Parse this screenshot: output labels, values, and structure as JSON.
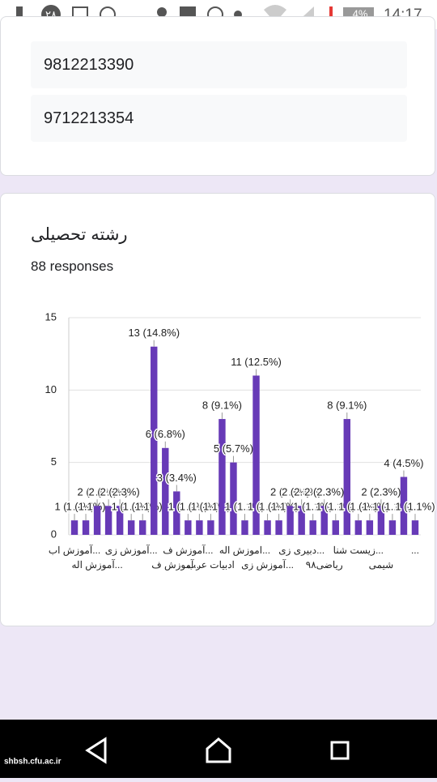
{
  "status_bar": {
    "time": "14:17",
    "battery": "4%",
    "badge": "۲۸"
  },
  "answers": [
    "9812213390",
    "9712213354"
  ],
  "question": {
    "title": "رشته تحصیلی",
    "responses": "88 responses"
  },
  "chart_data": {
    "type": "bar",
    "color": "#673ab7",
    "grid": true,
    "ylim": [
      0,
      15
    ],
    "yticks": [
      0,
      5,
      10,
      15
    ],
    "categories": [
      "آموزش اب...",
      null,
      "آموزش اله...",
      null,
      null,
      "آموزش زی...",
      null,
      null,
      null,
      "آموزش ف...",
      "آموزش ف...",
      null,
      "ادبیات عرب",
      null,
      null,
      "اموزش اله...",
      null,
      "آموزش زی...",
      null,
      null,
      "دبیری زی...",
      null,
      "ریاضی۹۸",
      null,
      null,
      "زیست شنا...",
      null,
      "شیمی",
      null,
      null,
      "..."
    ],
    "values": [
      1,
      1,
      2,
      2,
      2,
      1,
      1,
      13,
      6,
      3,
      1,
      1,
      1,
      8,
      5,
      1,
      11,
      1,
      1,
      2,
      2,
      1,
      2,
      1,
      8,
      1,
      1,
      2,
      1,
      4,
      1
    ],
    "value_labels": [
      "1 (1.1%)",
      "1 (1.1%)",
      "2 (2.3%)",
      "2 (2.3%)",
      "2 (2.3%)",
      "1 (1.1%)",
      "1 (1.1%)",
      "13 (14.8%)",
      "6 (6.8%)",
      "3 (3.4%)",
      "1 (1.1%)",
      "1 (1.1%)",
      "1 (1.1%)",
      "8 (9.1%)",
      "5 (5.7%)",
      "1 (1.1%)",
      "11 (12.5%)",
      "1 (1.1%)",
      "1 (1.1%)",
      "2 (2.3%)",
      "2 (2.3%)",
      "1 (1.1%)",
      "2 (2.3%)",
      "1 (1.1%)",
      "8 (9.1%)",
      "1 (1.1%)",
      "1 (1.1%)",
      "2 (2.3%)",
      "1 (1.1%)",
      "4 (4.5%)",
      "1 (1.1%)"
    ]
  },
  "watermark": "shbsh.cfu.ac.ir"
}
